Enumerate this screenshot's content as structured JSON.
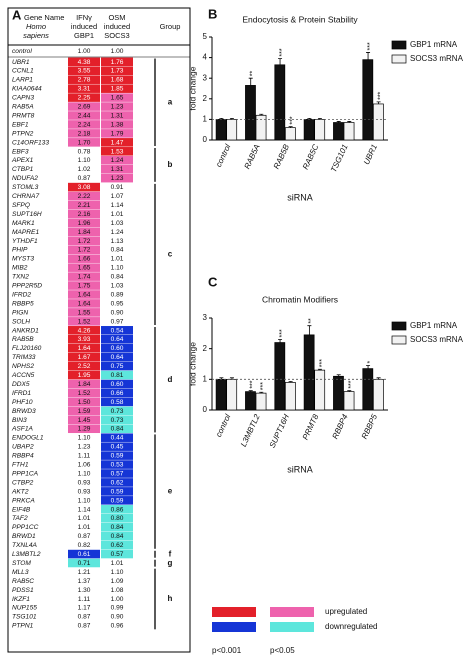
{
  "panels": [
    "A",
    "B",
    "C"
  ],
  "table": {
    "header": {
      "gene": [
        "Gene Name",
        "Homo",
        "sapiens"
      ],
      "gbp1": [
        "IFNγ",
        "induced",
        "GBP1"
      ],
      "socs3": [
        "OSM",
        "induced",
        "SOCS3"
      ],
      "group": "Group"
    },
    "control": {
      "gene": "control",
      "gbp1": "1.00",
      "socs3": "1.00",
      "colors": [
        null,
        null
      ]
    },
    "groups": [
      {
        "label": "a",
        "rows": [
          {
            "gene": "UBR1",
            "gbp1": "4.38",
            "socs3": "1.76",
            "colors": [
              "#e3202a",
              "#e3202a"
            ]
          },
          {
            "gene": "CCNL1",
            "gbp1": "3.55",
            "socs3": "1.73",
            "colors": [
              "#e3202a",
              "#e3202a"
            ]
          },
          {
            "gene": "LARP1",
            "gbp1": "2.78",
            "socs3": "1.68",
            "colors": [
              "#e3202a",
              "#e3202a"
            ]
          },
          {
            "gene": "KIAA0644",
            "gbp1": "3.31",
            "socs3": "1.85",
            "colors": [
              "#e3202a",
              "#e3202a"
            ]
          },
          {
            "gene": "CAPN3",
            "gbp1": "2.25",
            "socs3": "1.65",
            "colors": [
              "#e3202a",
              "#ee62ad"
            ]
          },
          {
            "gene": "RAB5A",
            "gbp1": "2.69",
            "socs3": "1.23",
            "colors": [
              "#ee62ad",
              "#ee62ad"
            ]
          },
          {
            "gene": "PRMT8",
            "gbp1": "2.44",
            "socs3": "1.31",
            "colors": [
              "#ee62ad",
              "#ee62ad"
            ]
          },
          {
            "gene": "EBF1",
            "gbp1": "2.24",
            "socs3": "1.38",
            "colors": [
              "#ee62ad",
              "#ee62ad"
            ]
          },
          {
            "gene": "PTPN2",
            "gbp1": "2.18",
            "socs3": "1.79",
            "colors": [
              "#ee62ad",
              "#ee62ad"
            ]
          },
          {
            "gene": "C14ORF133",
            "gbp1": "1.70",
            "socs3": "1.47",
            "colors": [
              "#ee62ad",
              "#e3202a"
            ]
          }
        ]
      },
      {
        "label": "b",
        "rows": [
          {
            "gene": "EBF3",
            "gbp1": "0.78",
            "socs3": "1.53",
            "colors": [
              null,
              "#e3202a"
            ]
          },
          {
            "gene": "APEX1",
            "gbp1": "1.10",
            "socs3": "1.24",
            "colors": [
              null,
              "#ee62ad"
            ]
          },
          {
            "gene": "CTBP1",
            "gbp1": "1.02",
            "socs3": "1.31",
            "colors": [
              null,
              "#ee62ad"
            ]
          },
          {
            "gene": "NDUFA2",
            "gbp1": "0.87",
            "socs3": "1.23",
            "colors": [
              null,
              "#ee62ad"
            ]
          }
        ]
      },
      {
        "label": "c",
        "rows": [
          {
            "gene": "STOML3",
            "gbp1": "3.08",
            "socs3": "0.91",
            "colors": [
              "#e3202a",
              null
            ]
          },
          {
            "gene": "CHRNA7",
            "gbp1": "2.22",
            "socs3": "1.07",
            "colors": [
              "#ee62ad",
              null
            ]
          },
          {
            "gene": "SFPQ",
            "gbp1": "2.21",
            "socs3": "1.14",
            "colors": [
              "#ee62ad",
              null
            ]
          },
          {
            "gene": "SUPT16H",
            "gbp1": "2.16",
            "socs3": "1.01",
            "colors": [
              "#ee62ad",
              null
            ]
          },
          {
            "gene": "MARK1",
            "gbp1": "1.96",
            "socs3": "1.03",
            "colors": [
              "#ee62ad",
              null
            ]
          },
          {
            "gene": "MAPRE1",
            "gbp1": "1.84",
            "socs3": "1.24",
            "colors": [
              "#ee62ad",
              null
            ]
          },
          {
            "gene": "YTHDF1",
            "gbp1": "1.72",
            "socs3": "1.13",
            "colors": [
              "#ee62ad",
              null
            ]
          },
          {
            "gene": "PHIP",
            "gbp1": "1.72",
            "socs3": "0.84",
            "colors": [
              "#ee62ad",
              null
            ]
          },
          {
            "gene": "MYST3",
            "gbp1": "1.66",
            "socs3": "1.01",
            "colors": [
              "#ee62ad",
              null
            ]
          },
          {
            "gene": "MIB2",
            "gbp1": "1.65",
            "socs3": "1.10",
            "colors": [
              "#ee62ad",
              null
            ]
          },
          {
            "gene": "TXN2",
            "gbp1": "1.74",
            "socs3": "0.84",
            "colors": [
              "#ee62ad",
              null
            ]
          },
          {
            "gene": "PPP2R5D",
            "gbp1": "1.75",
            "socs3": "1.03",
            "colors": [
              "#ee62ad",
              null
            ]
          },
          {
            "gene": "IFRD2",
            "gbp1": "1.64",
            "socs3": "0.89",
            "colors": [
              "#ee62ad",
              null
            ]
          },
          {
            "gene": "RBBP5",
            "gbp1": "1.64",
            "socs3": "0.95",
            "colors": [
              "#ee62ad",
              null
            ]
          },
          {
            "gene": "PIGN",
            "gbp1": "1.55",
            "socs3": "0.90",
            "colors": [
              "#ee62ad",
              null
            ]
          },
          {
            "gene": "SOLH",
            "gbp1": "1.52",
            "socs3": "0.97",
            "colors": [
              "#ee62ad",
              null
            ]
          }
        ]
      },
      {
        "label": "d",
        "rows": [
          {
            "gene": "ANKRD1",
            "gbp1": "4.26",
            "socs3": "0.54",
            "colors": [
              "#e3202a",
              "#1535d6"
            ]
          },
          {
            "gene": "RAB5B",
            "gbp1": "3.93",
            "socs3": "0.64",
            "colors": [
              "#e3202a",
              "#1535d6"
            ]
          },
          {
            "gene": "FLJ20160",
            "gbp1": "1.64",
            "socs3": "0.60",
            "colors": [
              "#e3202a",
              "#1535d6"
            ]
          },
          {
            "gene": "TRIM33",
            "gbp1": "1.67",
            "socs3": "0.64",
            "colors": [
              "#e3202a",
              "#1535d6"
            ]
          },
          {
            "gene": "NPHS2",
            "gbp1": "2.52",
            "socs3": "0.75",
            "colors": [
              "#e3202a",
              "#1535d6"
            ]
          },
          {
            "gene": "ACCN5",
            "gbp1": "1.95",
            "socs3": "0.81",
            "colors": [
              "#e3202a",
              "#5de6dc"
            ]
          },
          {
            "gene": "DDX5",
            "gbp1": "1.84",
            "socs3": "0.60",
            "colors": [
              "#ee62ad",
              "#1535d6"
            ]
          },
          {
            "gene": "IFRD1",
            "gbp1": "1.52",
            "socs3": "0.66",
            "colors": [
              "#ee62ad",
              "#1535d6"
            ]
          },
          {
            "gene": "PHF10",
            "gbp1": "1.50",
            "socs3": "0.58",
            "colors": [
              "#ee62ad",
              "#1535d6"
            ]
          },
          {
            "gene": "BRWD3",
            "gbp1": "1.59",
            "socs3": "0.73",
            "colors": [
              "#ee62ad",
              "#5de6dc"
            ]
          },
          {
            "gene": "BIN3",
            "gbp1": "1.45",
            "socs3": "0.73",
            "colors": [
              "#ee62ad",
              "#5de6dc"
            ]
          },
          {
            "gene": "ASF1A",
            "gbp1": "1.29",
            "socs3": "0.84",
            "colors": [
              "#ee62ad",
              "#5de6dc"
            ]
          }
        ]
      },
      {
        "label": "e",
        "rows": [
          {
            "gene": "ENDOGL1",
            "gbp1": "1.10",
            "socs3": "0.44",
            "colors": [
              null,
              "#1535d6"
            ]
          },
          {
            "gene": "UBAP2",
            "gbp1": "1.23",
            "socs3": "0.45",
            "colors": [
              null,
              "#1535d6"
            ]
          },
          {
            "gene": "RBBP4",
            "gbp1": "1.11",
            "socs3": "0.59",
            "colors": [
              null,
              "#1535d6"
            ]
          },
          {
            "gene": "FTH1",
            "gbp1": "1.06",
            "socs3": "0.53",
            "colors": [
              null,
              "#1535d6"
            ]
          },
          {
            "gene": "PPP1CA",
            "gbp1": "1.10",
            "socs3": "0.57",
            "colors": [
              null,
              "#1535d6"
            ]
          },
          {
            "gene": "CTBP2",
            "gbp1": "0.93",
            "socs3": "0.62",
            "colors": [
              null,
              "#1535d6"
            ]
          },
          {
            "gene": "AKT2",
            "gbp1": "0.93",
            "socs3": "0.59",
            "colors": [
              null,
              "#1535d6"
            ]
          },
          {
            "gene": "PRKCA",
            "gbp1": "1.10",
            "socs3": "0.59",
            "colors": [
              null,
              "#1535d6"
            ]
          },
          {
            "gene": "EIF4B",
            "gbp1": "1.14",
            "socs3": "0.86",
            "colors": [
              null,
              "#5de6dc"
            ]
          },
          {
            "gene": "TAF2",
            "gbp1": "1.01",
            "socs3": "0.80",
            "colors": [
              null,
              "#5de6dc"
            ]
          },
          {
            "gene": "PPP1CC",
            "gbp1": "1.01",
            "socs3": "0.84",
            "colors": [
              null,
              "#5de6dc"
            ]
          },
          {
            "gene": "BRWD1",
            "gbp1": "0.87",
            "socs3": "0.84",
            "colors": [
              null,
              "#5de6dc"
            ]
          },
          {
            "gene": "TXNL4A",
            "gbp1": "0.82",
            "socs3": "0.62",
            "colors": [
              null,
              "#5de6dc"
            ]
          }
        ]
      },
      {
        "label": "f",
        "rows": [
          {
            "gene": "L3MBTL2",
            "gbp1": "0.61",
            "socs3": "0.57",
            "colors": [
              "#1535d6",
              "#5de6dc"
            ]
          }
        ]
      },
      {
        "label": "g",
        "rows": [
          {
            "gene": "STOM",
            "gbp1": "0.71",
            "socs3": "1.01",
            "colors": [
              "#5de6dc",
              null
            ]
          }
        ]
      },
      {
        "label": "h",
        "rows": [
          {
            "gene": "MLL3",
            "gbp1": "1.21",
            "socs3": "1.10",
            "colors": [
              null,
              null
            ]
          },
          {
            "gene": "RAB5C",
            "gbp1": "1.37",
            "socs3": "1.09",
            "colors": [
              null,
              null
            ]
          },
          {
            "gene": "PDSS1",
            "gbp1": "1.30",
            "socs3": "1.08",
            "colors": [
              null,
              null
            ]
          },
          {
            "gene": "IKZF1",
            "gbp1": "1.11",
            "socs3": "1.00",
            "colors": [
              null,
              null
            ]
          },
          {
            "gene": "NUP155",
            "gbp1": "1.17",
            "socs3": "0.99",
            "colors": [
              null,
              null
            ]
          },
          {
            "gene": "TSG101",
            "gbp1": "0.87",
            "socs3": "0.90",
            "colors": [
              null,
              null
            ]
          },
          {
            "gene": "PTPN1",
            "gbp1": "0.87",
            "socs3": "0.96",
            "colors": [
              null,
              null
            ]
          }
        ]
      }
    ]
  },
  "legend": {
    "rows": [
      {
        "label": "upregulated",
        "colors": [
          "#e3202a",
          "#ee62ad"
        ]
      },
      {
        "label": "downregulated",
        "colors": [
          "#1535d6",
          "#5de6dc"
        ]
      }
    ],
    "columns": [
      "p<0.001",
      "p<0.05"
    ]
  },
  "chart_data": [
    {
      "type": "bar",
      "title": "Endocytosis & Protein Stability",
      "y_label": "fold change",
      "x_label": "siRNA",
      "categories": [
        "control",
        "RAB5A",
        "RAB5B",
        "RAB5C",
        "TSG101",
        "UBR1"
      ],
      "series": [
        {
          "name": "GBP1 mRNA",
          "color": "#111111",
          "values": [
            1.0,
            2.65,
            3.65,
            1.0,
            0.85,
            3.9
          ],
          "errors": [
            0.05,
            0.35,
            0.3,
            0.05,
            0.05,
            0.35
          ],
          "annotations": [
            null,
            "**",
            "***",
            null,
            null,
            "***"
          ]
        },
        {
          "name": "SOCS3 mRNA",
          "color": "#f2f2f2",
          "values": [
            1.0,
            1.2,
            0.6,
            1.0,
            0.85,
            1.75
          ],
          "errors": [
            0.05,
            0.05,
            0.05,
            0.05,
            0.05,
            0.1
          ],
          "annotations": [
            null,
            null,
            "***",
            null,
            null,
            "***"
          ]
        }
      ],
      "ylim": [
        0,
        5
      ],
      "yticks": [
        0,
        1,
        2,
        3,
        4,
        5
      ],
      "reference_line": 1
    },
    {
      "type": "bar",
      "title": "Chromatin Modifiers",
      "y_label": "fold change",
      "x_label": "siRNA",
      "categories": [
        "control",
        "L3MBTL2",
        "SUPT16H",
        "PRMT8",
        "RBBP4",
        "RBBP5"
      ],
      "series": [
        {
          "name": "GBP1 mRNA",
          "color": "#111111",
          "values": [
            1.0,
            0.6,
            2.2,
            2.45,
            1.1,
            1.35
          ],
          "errors": [
            0.05,
            0.03,
            0.1,
            0.3,
            0.05,
            0.1
          ],
          "annotations": [
            null,
            "***",
            "***",
            "**",
            null,
            "*"
          ]
        },
        {
          "name": "SOCS3 mRNA",
          "color": "#f2f2f2",
          "values": [
            1.0,
            0.55,
            0.9,
            1.3,
            0.6,
            1.0
          ],
          "errors": [
            0.05,
            0.03,
            0.03,
            0.03,
            0.03,
            0.05
          ],
          "annotations": [
            null,
            "***",
            null,
            "***",
            "***",
            null
          ]
        }
      ],
      "ylim": [
        0,
        3
      ],
      "yticks": [
        0,
        1,
        2,
        3
      ],
      "reference_line": 1
    }
  ]
}
